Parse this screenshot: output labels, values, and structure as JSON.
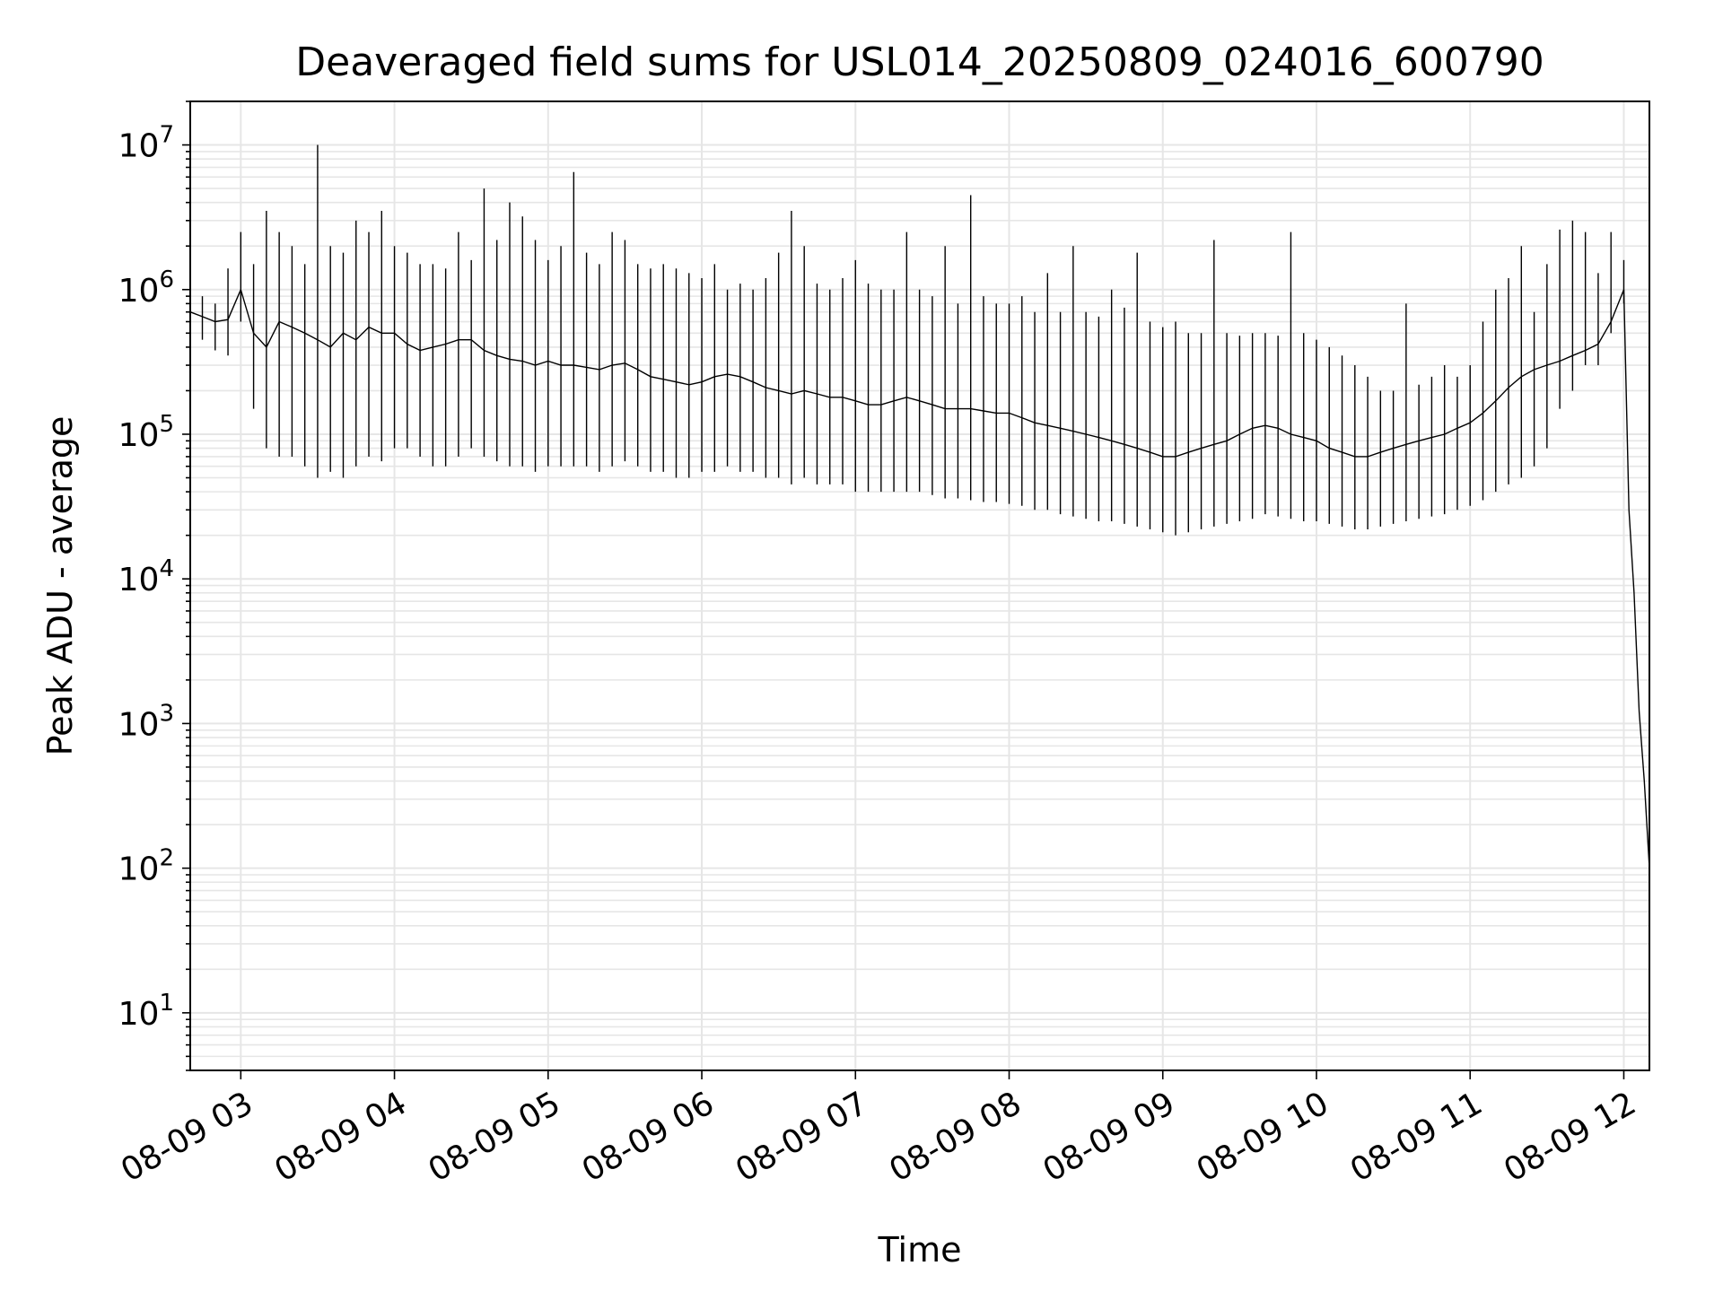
{
  "chart_data": {
    "type": "line",
    "title": "Deaveraged field sums for USL014_20250809_024016_600790",
    "xlabel": "Time",
    "ylabel": "Peak ADU - average",
    "y_scale": "log",
    "ylim": [
      4,
      20000000
    ],
    "xlim": [
      "2025-08-09T02:40:16",
      "2025-08-09T12:10:00"
    ],
    "grid": true,
    "x_ticks": [
      {
        "t": "2025-08-09T03:00",
        "label": "08-09 03"
      },
      {
        "t": "2025-08-09T04:00",
        "label": "08-09 04"
      },
      {
        "t": "2025-08-09T05:00",
        "label": "08-09 05"
      },
      {
        "t": "2025-08-09T06:00",
        "label": "08-09 06"
      },
      {
        "t": "2025-08-09T07:00",
        "label": "08-09 07"
      },
      {
        "t": "2025-08-09T08:00",
        "label": "08-09 08"
      },
      {
        "t": "2025-08-09T09:00",
        "label": "08-09 09"
      },
      {
        "t": "2025-08-09T10:00",
        "label": "08-09 10"
      },
      {
        "t": "2025-08-09T11:00",
        "label": "08-09 11"
      },
      {
        "t": "2025-08-09T12:00",
        "label": "08-09 12"
      }
    ],
    "y_ticks": [
      {
        "v": 10,
        "base": "10",
        "exp": "1"
      },
      {
        "v": 100,
        "base": "10",
        "exp": "2"
      },
      {
        "v": 1000,
        "base": "10",
        "exp": "3"
      },
      {
        "v": 10000,
        "base": "10",
        "exp": "4"
      },
      {
        "v": 100000,
        "base": "10",
        "exp": "5"
      },
      {
        "v": 1000000,
        "base": "10",
        "exp": "6"
      },
      {
        "v": 10000000,
        "base": "10",
        "exp": "7"
      }
    ],
    "line_color": "#000000",
    "grid_color": "#e6e6e6",
    "series": [
      {
        "x": [
          "2025-08-09T02:40:16",
          "2025-08-09T02:45",
          "2025-08-09T02:50",
          "2025-08-09T02:55",
          "2025-08-09T03:00",
          "2025-08-09T03:05",
          "2025-08-09T03:10",
          "2025-08-09T03:15",
          "2025-08-09T03:20",
          "2025-08-09T03:25",
          "2025-08-09T03:30",
          "2025-08-09T03:35",
          "2025-08-09T03:40",
          "2025-08-09T03:45",
          "2025-08-09T03:50",
          "2025-08-09T03:55",
          "2025-08-09T04:00",
          "2025-08-09T04:05",
          "2025-08-09T04:10",
          "2025-08-09T04:15",
          "2025-08-09T04:20",
          "2025-08-09T04:25",
          "2025-08-09T04:30",
          "2025-08-09T04:35",
          "2025-08-09T04:40",
          "2025-08-09T04:45",
          "2025-08-09T04:50",
          "2025-08-09T04:55",
          "2025-08-09T05:00",
          "2025-08-09T05:05",
          "2025-08-09T05:10",
          "2025-08-09T05:15",
          "2025-08-09T05:20",
          "2025-08-09T05:25",
          "2025-08-09T05:30",
          "2025-08-09T05:35",
          "2025-08-09T05:40",
          "2025-08-09T05:45",
          "2025-08-09T05:50",
          "2025-08-09T05:55",
          "2025-08-09T06:00",
          "2025-08-09T06:05",
          "2025-08-09T06:10",
          "2025-08-09T06:15",
          "2025-08-09T06:20",
          "2025-08-09T06:25",
          "2025-08-09T06:30",
          "2025-08-09T06:35",
          "2025-08-09T06:40",
          "2025-08-09T06:45",
          "2025-08-09T06:50",
          "2025-08-09T06:55",
          "2025-08-09T07:00",
          "2025-08-09T07:05",
          "2025-08-09T07:10",
          "2025-08-09T07:15",
          "2025-08-09T07:20",
          "2025-08-09T07:25",
          "2025-08-09T07:30",
          "2025-08-09T07:35",
          "2025-08-09T07:40",
          "2025-08-09T07:45",
          "2025-08-09T07:50",
          "2025-08-09T07:55",
          "2025-08-09T08:00",
          "2025-08-09T08:05",
          "2025-08-09T08:10",
          "2025-08-09T08:15",
          "2025-08-09T08:20",
          "2025-08-09T08:25",
          "2025-08-09T08:30",
          "2025-08-09T08:35",
          "2025-08-09T08:40",
          "2025-08-09T08:45",
          "2025-08-09T08:50",
          "2025-08-09T08:55",
          "2025-08-09T09:00",
          "2025-08-09T09:05",
          "2025-08-09T09:10",
          "2025-08-09T09:15",
          "2025-08-09T09:20",
          "2025-08-09T09:25",
          "2025-08-09T09:30",
          "2025-08-09T09:35",
          "2025-08-09T09:40",
          "2025-08-09T09:45",
          "2025-08-09T09:50",
          "2025-08-09T09:55",
          "2025-08-09T10:00",
          "2025-08-09T10:05",
          "2025-08-09T10:10",
          "2025-08-09T10:15",
          "2025-08-09T10:20",
          "2025-08-09T10:25",
          "2025-08-09T10:30",
          "2025-08-09T10:35",
          "2025-08-09T10:40",
          "2025-08-09T10:45",
          "2025-08-09T10:50",
          "2025-08-09T10:55",
          "2025-08-09T11:00",
          "2025-08-09T11:05",
          "2025-08-09T11:10",
          "2025-08-09T11:15",
          "2025-08-09T11:20",
          "2025-08-09T11:25",
          "2025-08-09T11:30",
          "2025-08-09T11:35",
          "2025-08-09T11:40",
          "2025-08-09T11:45",
          "2025-08-09T11:50",
          "2025-08-09T11:55",
          "2025-08-09T12:00",
          "2025-08-09T12:02",
          "2025-08-09T12:04",
          "2025-08-09T12:06",
          "2025-08-09T12:08",
          "2025-08-09T12:10"
        ],
        "y_center": [
          700000,
          650000,
          600000,
          620000,
          1000000,
          500000,
          400000,
          600000,
          550000,
          500000,
          450000,
          400000,
          500000,
          450000,
          550000,
          500000,
          500000,
          420000,
          380000,
          400000,
          420000,
          450000,
          450000,
          380000,
          350000,
          330000,
          320000,
          300000,
          320000,
          300000,
          300000,
          290000,
          280000,
          300000,
          310000,
          280000,
          250000,
          240000,
          230000,
          220000,
          230000,
          250000,
          260000,
          250000,
          230000,
          210000,
          200000,
          190000,
          200000,
          190000,
          180000,
          180000,
          170000,
          160000,
          160000,
          170000,
          180000,
          170000,
          160000,
          150000,
          150000,
          150000,
          145000,
          140000,
          140000,
          130000,
          120000,
          115000,
          110000,
          105000,
          100000,
          95000,
          90000,
          85000,
          80000,
          75000,
          70000,
          70000,
          75000,
          80000,
          85000,
          90000,
          100000,
          110000,
          115000,
          110000,
          100000,
          95000,
          90000,
          80000,
          75000,
          70000,
          70000,
          75000,
          80000,
          85000,
          90000,
          95000,
          100000,
          110000,
          120000,
          140000,
          170000,
          210000,
          250000,
          280000,
          300000,
          320000,
          350000,
          380000,
          420000,
          600000,
          1000000,
          30000,
          8000,
          1200,
          400,
          100
        ],
        "y_min": [
          500000,
          450000,
          380000,
          350000,
          600000,
          150000,
          80000,
          70000,
          70000,
          60000,
          50000,
          55000,
          50000,
          60000,
          70000,
          65000,
          80000,
          80000,
          70000,
          60000,
          60000,
          70000,
          80000,
          70000,
          65000,
          60000,
          60000,
          55000,
          60000,
          60000,
          60000,
          60000,
          55000,
          60000,
          65000,
          60000,
          55000,
          55000,
          50000,
          50000,
          55000,
          55000,
          60000,
          55000,
          55000,
          50000,
          50000,
          45000,
          50000,
          45000,
          45000,
          45000,
          40000,
          40000,
          40000,
          40000,
          40000,
          40000,
          38000,
          36000,
          36000,
          35000,
          34000,
          34000,
          33000,
          32000,
          30000,
          30000,
          28000,
          27000,
          26000,
          25000,
          25000,
          24000,
          23000,
          22000,
          21000,
          20000,
          21000,
          22000,
          23000,
          24000,
          25000,
          26000,
          28000,
          27000,
          26000,
          25000,
          25000,
          24000,
          23000,
          22000,
          22000,
          23000,
          24000,
          25000,
          26000,
          27000,
          28000,
          30000,
          32000,
          35000,
          40000,
          45000,
          50000,
          60000,
          80000,
          150000,
          200000,
          300000,
          300000,
          500000,
          800000,
          30000,
          8000,
          1200,
          400,
          100
        ],
        "y_max": [
          800000,
          900000,
          800000,
          1400000,
          2500000,
          1500000,
          3500000,
          2500000,
          2000000,
          1500000,
          10000000,
          2000000,
          1800000,
          3000000,
          2500000,
          3500000,
          2000000,
          1800000,
          1500000,
          1500000,
          1400000,
          2500000,
          1600000,
          5000000,
          2200000,
          4000000,
          3200000,
          2200000,
          1600000,
          2000000,
          6500000,
          1800000,
          1500000,
          2500000,
          2200000,
          1500000,
          1400000,
          1500000,
          1400000,
          1300000,
          1200000,
          1500000,
          1000000,
          1100000,
          1000000,
          1200000,
          1800000,
          3500000,
          2000000,
          1100000,
          1000000,
          1200000,
          1600000,
          1100000,
          1000000,
          1000000,
          2500000,
          1000000,
          900000,
          2000000,
          800000,
          4500000,
          900000,
          800000,
          800000,
          900000,
          700000,
          1300000,
          700000,
          2000000,
          700000,
          650000,
          1000000,
          750000,
          1800000,
          600000,
          550000,
          600000,
          500000,
          500000,
          2200000,
          500000,
          480000,
          500000,
          500000,
          480000,
          2500000,
          500000,
          450000,
          400000,
          350000,
          300000,
          250000,
          200000,
          200000,
          800000,
          220000,
          250000,
          300000,
          250000,
          300000,
          600000,
          1000000,
          1200000,
          2000000,
          700000,
          1500000,
          2600000,
          3000000,
          2500000,
          1300000,
          2500000,
          1600000,
          30000,
          8000,
          1200,
          400,
          100
        ]
      }
    ]
  }
}
